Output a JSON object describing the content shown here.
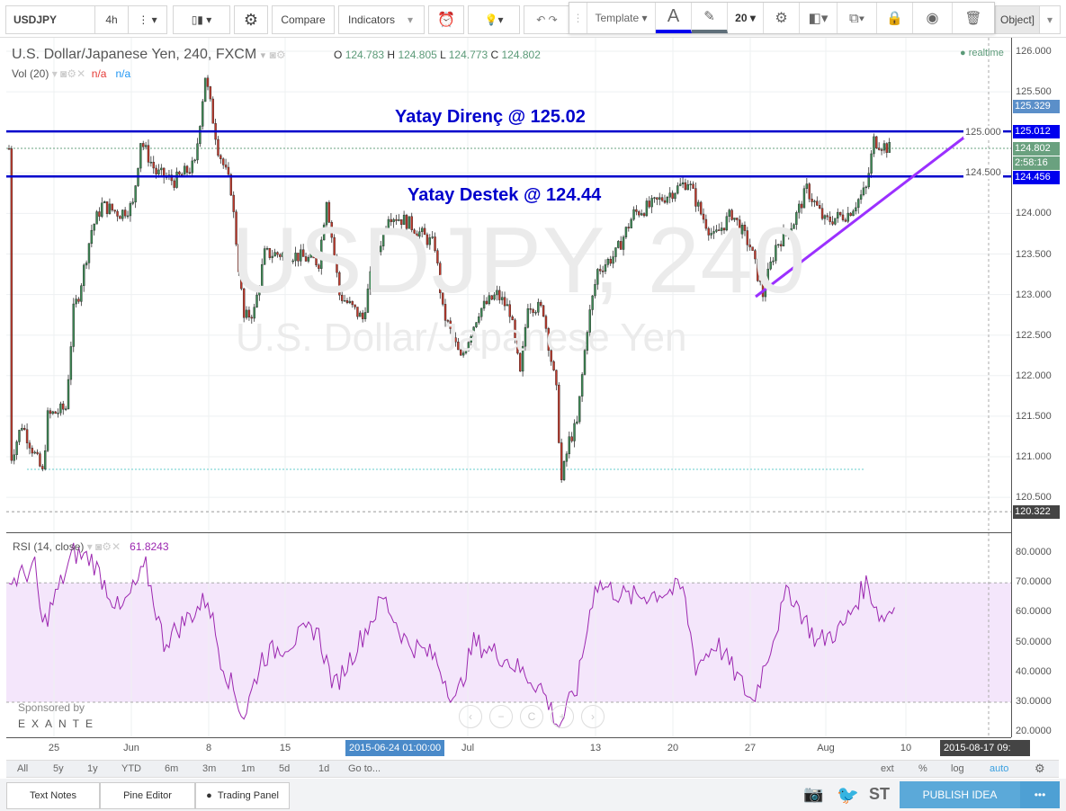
{
  "toolbar": {
    "symbol": "USDJPY",
    "interval": "4h",
    "compare": "Compare",
    "indicators": "Indicators",
    "object_tree": "Object]"
  },
  "drawing_toolbar": {
    "template": "Template",
    "text_tool": "A",
    "font_size": "20",
    "text_color": "#0000ff",
    "line_color": "#5f6f7a"
  },
  "legend": {
    "title": "U.S. Dollar/Japanese Yen, 240, FXCM",
    "o_label": "O",
    "o": "124.783",
    "h_label": "H",
    "h": "124.805",
    "l_label": "L",
    "l": "124.773",
    "c_label": "C",
    "c": "124.802",
    "realtime": "realtime",
    "vol": "Vol (20)",
    "vol_a": "n/a",
    "vol_b": "n/a"
  },
  "watermark": {
    "symbol": "USDJPY, 240",
    "name": "U.S. Dollar/Japanese Yen"
  },
  "annotations": {
    "resistance": "Yatay Direnç @ 125.02",
    "support": "Yatay Destek @ 124.44",
    "color": "#0000cc",
    "trend_color": "#9b30ff"
  },
  "price_axis": {
    "ticks": [
      "126.000",
      "125.500",
      "125.000",
      "124.500",
      "124.000",
      "123.500",
      "123.000",
      "122.500",
      "122.000",
      "121.500",
      "121.000",
      "120.500"
    ],
    "tick_values": [
      126,
      125.5,
      125,
      124.5,
      124,
      123.5,
      123,
      122.5,
      122,
      121.5,
      121,
      120.5
    ],
    "tags": [
      {
        "text": "125.329",
        "value": 125.329,
        "color": "#5b8fc9"
      },
      {
        "text": "125.012",
        "value": 125.012,
        "color": "#0000ee"
      },
      {
        "text": "124.802",
        "value": 124.802,
        "color": "#6aa17f"
      },
      {
        "text": "2:58:16",
        "value": 124.66,
        "color": "#6aa17f"
      },
      {
        "text": "124.456",
        "value": 124.456,
        "color": "#0000ee"
      },
      {
        "text": "120.322",
        "value": 120.322,
        "color": "#444"
      }
    ]
  },
  "price_path": [
    [
      1,
      121.0
    ],
    [
      5,
      121.4
    ],
    [
      13,
      120.8
    ],
    [
      15,
      121.5
    ],
    [
      22,
      121.6
    ],
    [
      25,
      122.8
    ],
    [
      27,
      123.0
    ],
    [
      32,
      123.8
    ],
    [
      36,
      124.1
    ],
    [
      43,
      124.0
    ],
    [
      48,
      124.1
    ],
    [
      51,
      124.9
    ],
    [
      57,
      124.5
    ],
    [
      64,
      124.4
    ],
    [
      72,
      124.6
    ],
    [
      76,
      125.7
    ],
    [
      81,
      124.8
    ],
    [
      86,
      124.3
    ],
    [
      91,
      122.7
    ],
    [
      95,
      122.8
    ],
    [
      99,
      123.5
    ],
    [
      109,
      123.5
    ],
    [
      120,
      123.4
    ],
    [
      123,
      124.2
    ],
    [
      128,
      123.0
    ],
    [
      137,
      122.7
    ],
    [
      140,
      123.2
    ],
    [
      147,
      124.0
    ],
    [
      154,
      123.9
    ],
    [
      165,
      123.6
    ],
    [
      168,
      122.8
    ],
    [
      175,
      122.2
    ],
    [
      182,
      122.8
    ],
    [
      189,
      123.0
    ],
    [
      194,
      122.8
    ],
    [
      198,
      122.0
    ],
    [
      201,
      122.9
    ],
    [
      207,
      122.8
    ],
    [
      212,
      121.8
    ],
    [
      214,
      120.7
    ],
    [
      217,
      121.2
    ],
    [
      220,
      121.4
    ],
    [
      224,
      122.6
    ],
    [
      228,
      123.3
    ],
    [
      235,
      123.5
    ],
    [
      242,
      124.0
    ],
    [
      249,
      124.1
    ],
    [
      263,
      124.4
    ],
    [
      268,
      124.0
    ],
    [
      273,
      123.7
    ],
    [
      280,
      124.0
    ],
    [
      287,
      123.6
    ],
    [
      292,
      123.0
    ],
    [
      297,
      123.6
    ],
    [
      304,
      123.9
    ],
    [
      309,
      124.3
    ],
    [
      316,
      123.9
    ],
    [
      325,
      124.0
    ],
    [
      332,
      124.3
    ],
    [
      335,
      124.9
    ],
    [
      341,
      124.8
    ]
  ],
  "rsi": {
    "label": "RSI (14, close)",
    "value": "61.8243",
    "ticks": [
      "80.0000",
      "70.0000",
      "60.0000",
      "50.0000",
      "40.0000",
      "30.0000",
      "20.0000"
    ],
    "tick_values": [
      80,
      70,
      60,
      50,
      40,
      30,
      20
    ],
    "upper": 70,
    "lower": 30,
    "color": "#9c27b0",
    "path": [
      [
        0,
        70
      ],
      [
        10,
        75
      ],
      [
        13,
        55
      ],
      [
        25,
        80
      ],
      [
        32,
        78
      ],
      [
        43,
        60
      ],
      [
        53,
        75
      ],
      [
        60,
        50
      ],
      [
        77,
        65
      ],
      [
        82,
        45
      ],
      [
        91,
        25
      ],
      [
        98,
        45
      ],
      [
        119,
        55
      ],
      [
        126,
        35
      ],
      [
        145,
        65
      ],
      [
        154,
        50
      ],
      [
        165,
        45
      ],
      [
        173,
        30
      ],
      [
        180,
        50
      ],
      [
        192,
        45
      ],
      [
        206,
        35
      ],
      [
        213,
        22
      ],
      [
        220,
        35
      ],
      [
        227,
        70
      ],
      [
        240,
        65
      ],
      [
        261,
        68
      ],
      [
        266,
        42
      ],
      [
        274,
        50
      ],
      [
        288,
        30
      ],
      [
        302,
        68
      ],
      [
        313,
        50
      ],
      [
        323,
        55
      ],
      [
        332,
        70
      ],
      [
        338,
        58
      ],
      [
        343,
        62
      ]
    ]
  },
  "sponsor": {
    "label": "Sponsored by",
    "brand": "EXANTE"
  },
  "time_axis": {
    "labels": [
      "25",
      "Jun",
      "8",
      "15",
      "Jul",
      "13",
      "20",
      "27",
      "Aug",
      "10"
    ],
    "crosshair_date": "2015-06-24 01:00:00",
    "end_date": "2015-08-17 09:"
  },
  "ranges": [
    "All",
    "5y",
    "1y",
    "YTD",
    "6m",
    "3m",
    "1m",
    "5d",
    "1d",
    "Go to..."
  ],
  "scale_options": [
    "ext",
    "%",
    "log",
    "auto"
  ],
  "bottom": {
    "text_notes": "Text Notes",
    "pine_editor": "Pine Editor",
    "trading_panel": "Trading Panel",
    "st": "ST",
    "publish": "PUBLISH IDEA",
    "more": "•••"
  }
}
